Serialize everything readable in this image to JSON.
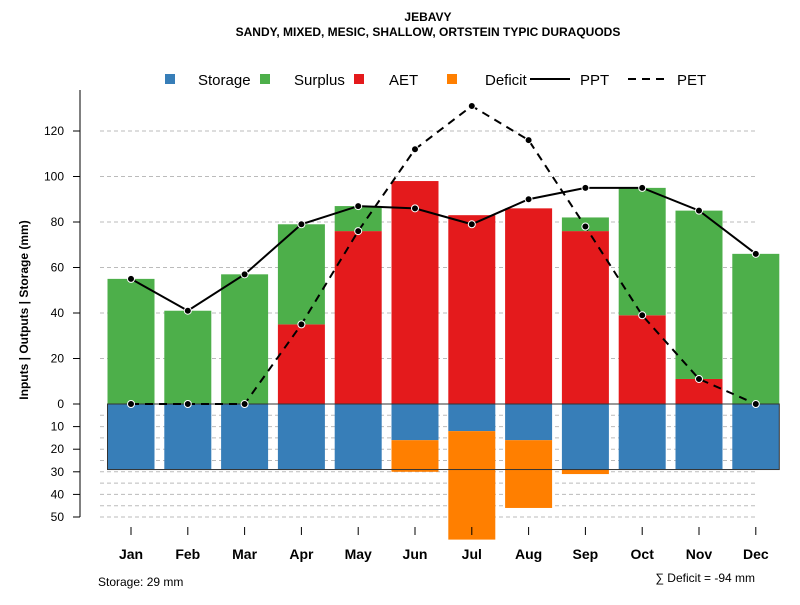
{
  "chart_data": {
    "type": "bar",
    "title": "JEBAVY",
    "subtitle": "SANDY, MIXED, MESIC, SHALLOW, ORTSTEIN TYPIC DURAQUODS",
    "ylabel": "Inputs | Outputs | Storage    (mm)",
    "ylim": [
      -50,
      130
    ],
    "yticks_upper": [
      0,
      20,
      40,
      60,
      80,
      100,
      120
    ],
    "yticks_lower": [
      10,
      20,
      30,
      40,
      50
    ],
    "categories": [
      "Jan",
      "Feb",
      "Mar",
      "Apr",
      "May",
      "Jun",
      "Jul",
      "Aug",
      "Sep",
      "Oct",
      "Nov",
      "Dec"
    ],
    "legend": {
      "position": "top",
      "entries": [
        {
          "label": "Storage",
          "color": "#377EB8",
          "kind": "box"
        },
        {
          "label": "Surplus",
          "color": "#4DAF4A",
          "kind": "box"
        },
        {
          "label": "AET",
          "color": "#E41A1C",
          "kind": "box"
        },
        {
          "label": "Deficit",
          "color": "#FF7F00",
          "kind": "box"
        },
        {
          "label": "PPT",
          "color": "#000000",
          "kind": "solid"
        },
        {
          "label": "PET",
          "color": "#000000",
          "kind": "dashed"
        }
      ]
    },
    "series": [
      {
        "name": "AET",
        "values": [
          0,
          0,
          0,
          35,
          76,
          98,
          83,
          86,
          76,
          39,
          11,
          0
        ]
      },
      {
        "name": "Surplus",
        "values": [
          55,
          41,
          57,
          44,
          11,
          0,
          0,
          0,
          6,
          56,
          74,
          66
        ]
      },
      {
        "name": "Storage",
        "values": [
          29,
          29,
          29,
          29,
          29,
          16,
          12,
          16,
          29,
          29,
          29,
          29
        ]
      },
      {
        "name": "Deficit",
        "values": [
          0,
          0,
          0,
          0,
          0,
          14,
          48,
          30,
          2,
          0,
          0,
          0
        ]
      },
      {
        "name": "PPT",
        "values": [
          55,
          41,
          57,
          79,
          87,
          86,
          79,
          90,
          95,
          95,
          85,
          66
        ]
      },
      {
        "name": "PET",
        "values": [
          0,
          0,
          0,
          35,
          76,
          112,
          131,
          116,
          78,
          39,
          11,
          0
        ]
      }
    ],
    "storage_capacity": 29,
    "annotations": {
      "storage": "Storage: 29 mm",
      "deficit": "∑ Deficit = -94 mm"
    }
  }
}
